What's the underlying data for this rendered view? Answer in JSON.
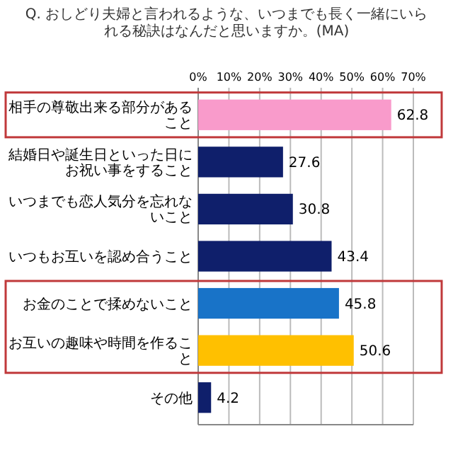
{
  "chart_data": {
    "type": "bar",
    "orientation": "horizontal",
    "title": "Q. おしどり夫婦と言われるような、いつまでも長く一緒にいられる秘訣はなんだと思いますか。(MA)",
    "categories": [
      "相手の尊敬出来る部分があること",
      "結婚日や誕生日といった日にお祝い事をすること",
      "いつまでも恋人気分を忘れないこと",
      "いつもお互いを認め合うこと",
      "お金のことで揉めないこと",
      "お互いの趣味や時間を作ること",
      "その他"
    ],
    "values": [
      62.8,
      27.6,
      30.8,
      43.4,
      45.8,
      50.6,
      4.2
    ],
    "colors": [
      "#f99bcb",
      "#0f1f6b",
      "#0f1f6b",
      "#0f1f6b",
      "#1873c8",
      "#ffc000",
      "#0f1f6b"
    ],
    "xlim": [
      0,
      70
    ],
    "xticks": [
      {
        "value": 0,
        "label": "0%"
      },
      {
        "value": 10,
        "label": "10%"
      },
      {
        "value": 20,
        "label": "20%"
      },
      {
        "value": 30,
        "label": "30%"
      },
      {
        "value": 40,
        "label": "40%"
      },
      {
        "value": 50,
        "label": "50%"
      },
      {
        "value": 60,
        "label": "60%"
      },
      {
        "value": 70,
        "label": "70%"
      }
    ],
    "grid": "x",
    "data_labels": true
  }
}
